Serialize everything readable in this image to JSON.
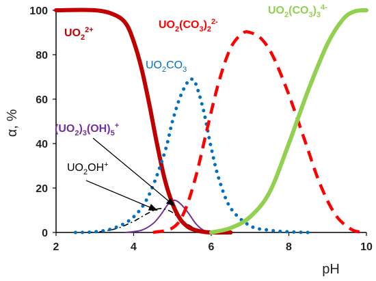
{
  "chart_data": {
    "type": "line",
    "xlabel": "pH",
    "ylabel": "α, %",
    "xlim": [
      2,
      10
    ],
    "ylim": [
      0,
      100
    ],
    "xticks": [
      "2",
      "4",
      "6",
      "8",
      "10"
    ],
    "yticks": [
      "0",
      "20",
      "40",
      "60",
      "80",
      "100"
    ],
    "series": [
      {
        "name": "UO2 2+",
        "label_parts": [
          "UO",
          "2",
          "2+"
        ],
        "color": "#c00000",
        "style": "solid",
        "x": [
          2,
          3,
          3.5,
          3.8,
          4.0,
          4.2,
          4.4,
          4.6,
          4.8,
          5.0,
          5.2,
          5.4,
          5.6,
          5.8,
          6.0,
          6.5
        ],
        "y": [
          100,
          100,
          98,
          94,
          86,
          74,
          58,
          40,
          24,
          13,
          6,
          2.5,
          1,
          0.3,
          0,
          0
        ]
      },
      {
        "name": "UO2CO3",
        "label_parts": [
          "UO",
          "2",
          "CO",
          "3"
        ],
        "color": "#0070c0",
        "style": "dotted",
        "x": [
          2.5,
          3.0,
          3.5,
          4.0,
          4.4,
          4.8,
          5.0,
          5.2,
          5.4,
          5.5,
          5.6,
          5.8,
          6.0,
          6.2,
          6.5,
          7.0,
          7.5,
          8.0,
          8.5
        ],
        "y": [
          0,
          0.3,
          2,
          7,
          17,
          36,
          50,
          61,
          68,
          69,
          67,
          55,
          38,
          24,
          11,
          3,
          1,
          0.3,
          0
        ]
      },
      {
        "name": "UO2(CO3)2 2-",
        "label_parts": [
          "UO",
          "2",
          "(CO",
          "3",
          ")",
          "2",
          "2-"
        ],
        "color": "#ff0000",
        "style": "dashed",
        "x": [
          4.5,
          5.0,
          5.3,
          5.6,
          5.9,
          6.2,
          6.5,
          6.8,
          7.0,
          7.3,
          7.6,
          8.0,
          8.4,
          8.8,
          9.2,
          9.6,
          9.9
        ],
        "y": [
          0,
          2,
          9,
          25,
          47,
          68,
          83,
          89.5,
          90,
          87,
          79,
          62,
          42,
          22,
          8,
          1.5,
          0
        ]
      },
      {
        "name": "UO2(CO3)3 4-",
        "label_parts": [
          "UO",
          "2",
          "(CO",
          "3",
          ")",
          "3",
          "4-"
        ],
        "color": "#92d050",
        "style": "solid",
        "x": [
          6.0,
          6.5,
          7.0,
          7.5,
          8.0,
          8.5,
          9.0,
          9.4,
          9.7,
          10.0
        ],
        "y": [
          0,
          2,
          7,
          18,
          40,
          64,
          85,
          96,
          99.5,
          100
        ]
      },
      {
        "name": "(UO2)3(OH)5 +",
        "label_parts": [
          "(UO",
          "2",
          ")",
          "3",
          "(OH)",
          "5",
          "+"
        ],
        "color": "#7030a0",
        "style": "solid",
        "x": [
          3.8,
          4.2,
          4.5,
          4.7,
          4.9,
          5.05,
          5.2,
          5.4,
          5.6,
          5.8,
          6.0
        ],
        "y": [
          0,
          1,
          4,
          8,
          13,
          14.5,
          13,
          9,
          4,
          1,
          0
        ]
      },
      {
        "name": "UO2OH+",
        "label_parts": [
          "UO",
          "2",
          "OH",
          "+"
        ],
        "color": "#000000",
        "style": "dashdot",
        "x": [
          2.8,
          3.2,
          3.6,
          4.0,
          4.3,
          4.6,
          4.8,
          5.0,
          5.2,
          5.5,
          5.8
        ],
        "y": [
          0,
          0.5,
          2,
          5,
          8,
          10.5,
          10.5,
          9,
          6,
          2.5,
          0
        ]
      }
    ],
    "annotations": [
      {
        "series": "UO2OH+",
        "arrow_to": [
          4.6,
          10
        ]
      },
      {
        "series": "(UO2)3(OH)5 +",
        "arrow_to": [
          5.05,
          12
        ]
      }
    ]
  }
}
